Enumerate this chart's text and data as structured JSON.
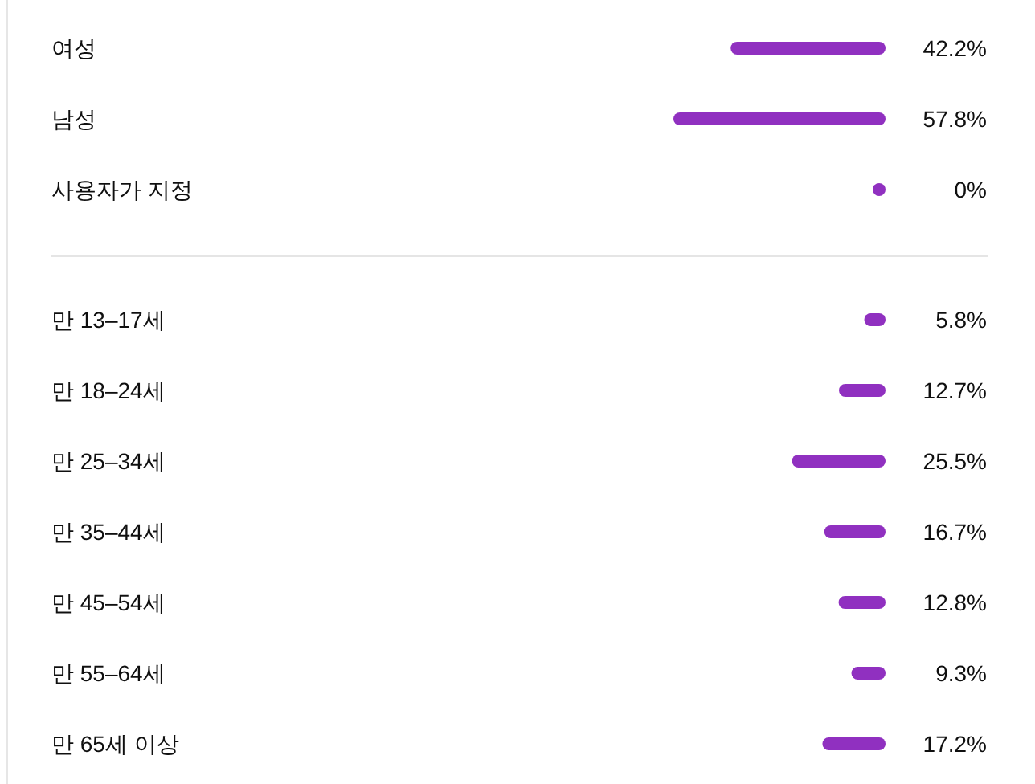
{
  "chart_data": [
    {
      "type": "bar",
      "orientation": "horizontal",
      "categories": [
        "여성",
        "남성",
        "사용자가 지정"
      ],
      "values": [
        42.2,
        57.8,
        0
      ],
      "value_labels": [
        "42.2%",
        "57.8%",
        "0%"
      ],
      "color": "#9030c0",
      "tick_labels": "y"
    },
    {
      "type": "bar",
      "orientation": "horizontal",
      "categories": [
        "만 13–17세",
        "만 18–24세",
        "만 25–34세",
        "만 35–44세",
        "만 45–54세",
        "만 55–64세",
        "만 65세 이상"
      ],
      "values": [
        5.8,
        12.7,
        25.5,
        16.7,
        12.8,
        9.3,
        17.2
      ],
      "value_labels": [
        "5.8%",
        "12.7%",
        "25.5%",
        "16.7%",
        "12.8%",
        "9.3%",
        "17.2%"
      ],
      "color": "#9030c0",
      "tick_labels": "y"
    }
  ]
}
